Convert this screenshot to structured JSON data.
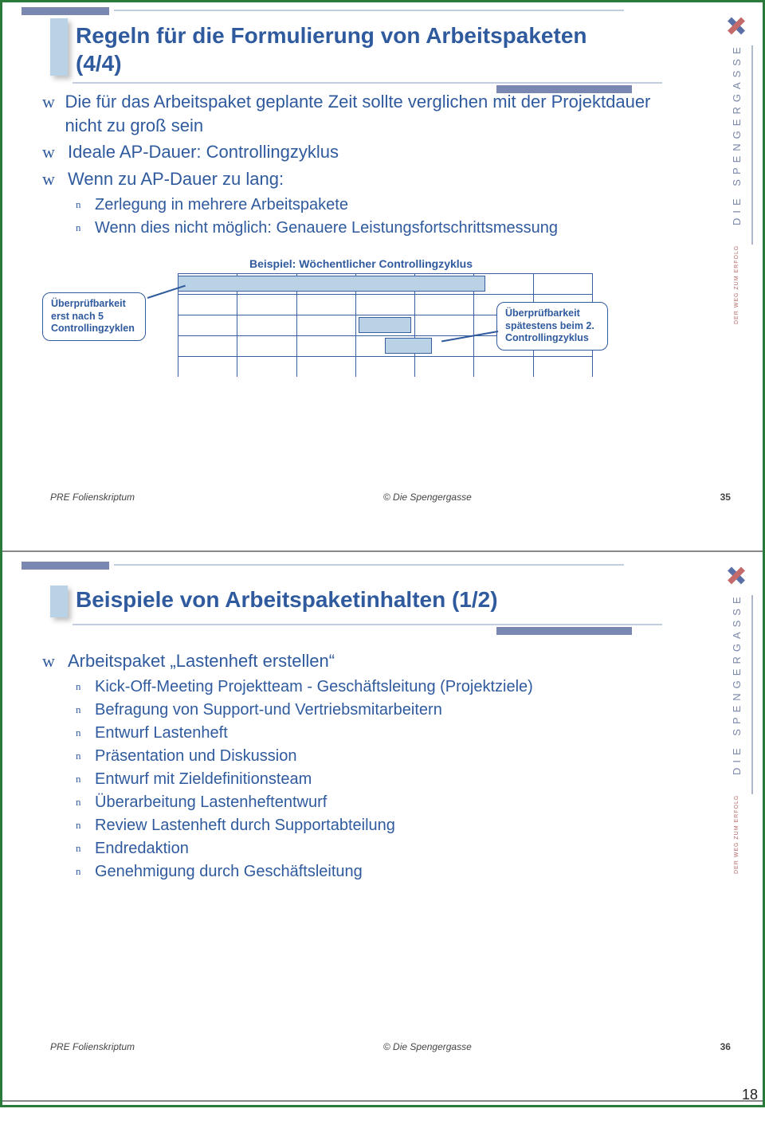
{
  "sidebar": {
    "brand": "DIE SPENGERGASSE",
    "tagline": "DER WEG ZUM ERFOLG"
  },
  "slide1": {
    "title": "Regeln für die Formulierung von Arbeitspaketen (4/4)",
    "bullets": [
      "Die für das Arbeitspaket geplante Zeit sollte verglichen mit der Projektdauer nicht zu groß sein",
      "Ideale AP-Dauer: Controllingzyklus",
      "Wenn zu AP-Dauer zu lang:"
    ],
    "sub_bullets": [
      "Zerlegung in mehrere Arbeitspakete",
      "Wenn dies nicht möglich: Genauere Leistungsfortschrittsmessung"
    ],
    "chart": {
      "title": "Beispiel: Wöchentlicher Controllingzyklus",
      "callout_left": "Überprüfbarkeit erst nach 5 Controllingzyklen",
      "callout_right": "Überprüfbarkeit spätestens beim 2. Controllingzyklus",
      "cols": 7,
      "rows": 5,
      "bars": [
        {
          "row": 0,
          "start": 0,
          "span": 5.2
        },
        {
          "row": 2,
          "start": 3.05,
          "span": 0.9
        },
        {
          "row": 3,
          "start": 3.5,
          "span": 0.8
        }
      ],
      "bar_color": "#b9d2e6",
      "grid_color": "#3a5fa0"
    },
    "footer_left": "PRE Folienskriptum",
    "footer_center": "© Die Spengergasse",
    "footer_page": "35"
  },
  "slide2": {
    "title": "Beispiele von Arbeitspaketinhalten (1/2)",
    "bullet_main": "Arbeitspaket „Lastenheft erstellen“",
    "sub_bullets": [
      "Kick-Off-Meeting Projektteam - Geschäftsleitung (Projektziele)",
      "Befragung von Support-und Vertriebsmitarbeitern",
      "Entwurf Lastenheft",
      "Präsentation und Diskussion",
      "Entwurf mit Zieldefinitionsteam",
      "Überarbeitung Lastenheftentwurf",
      "Review Lastenheft durch Supportabteilung",
      "Endredaktion",
      "Genehmigung durch Geschäftsleitung"
    ],
    "footer_left": "PRE Folienskriptum",
    "footer_center": "© Die Spengergasse",
    "footer_page": "36"
  },
  "outer_page": "18"
}
